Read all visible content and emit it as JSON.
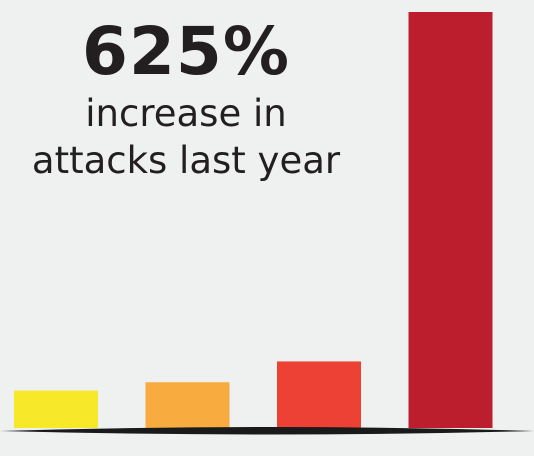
{
  "headline": {
    "value": "625%",
    "line1": "increase in",
    "line2": "attacks last year"
  },
  "colors": {
    "background": "#eff1f0",
    "text": "#231f20",
    "baseline": "#1a1a1a"
  },
  "chart_data": {
    "type": "bar",
    "categories": [
      "",
      "",
      "",
      ""
    ],
    "values": [
      9,
      11,
      16,
      100
    ],
    "colors": [
      "#f7e829",
      "#f8ac40",
      "#ee4136",
      "#bc1e2d"
    ],
    "title": "",
    "xlabel": "",
    "ylabel": "",
    "ylim": [
      0,
      100
    ],
    "grid": false,
    "legend": "none"
  }
}
